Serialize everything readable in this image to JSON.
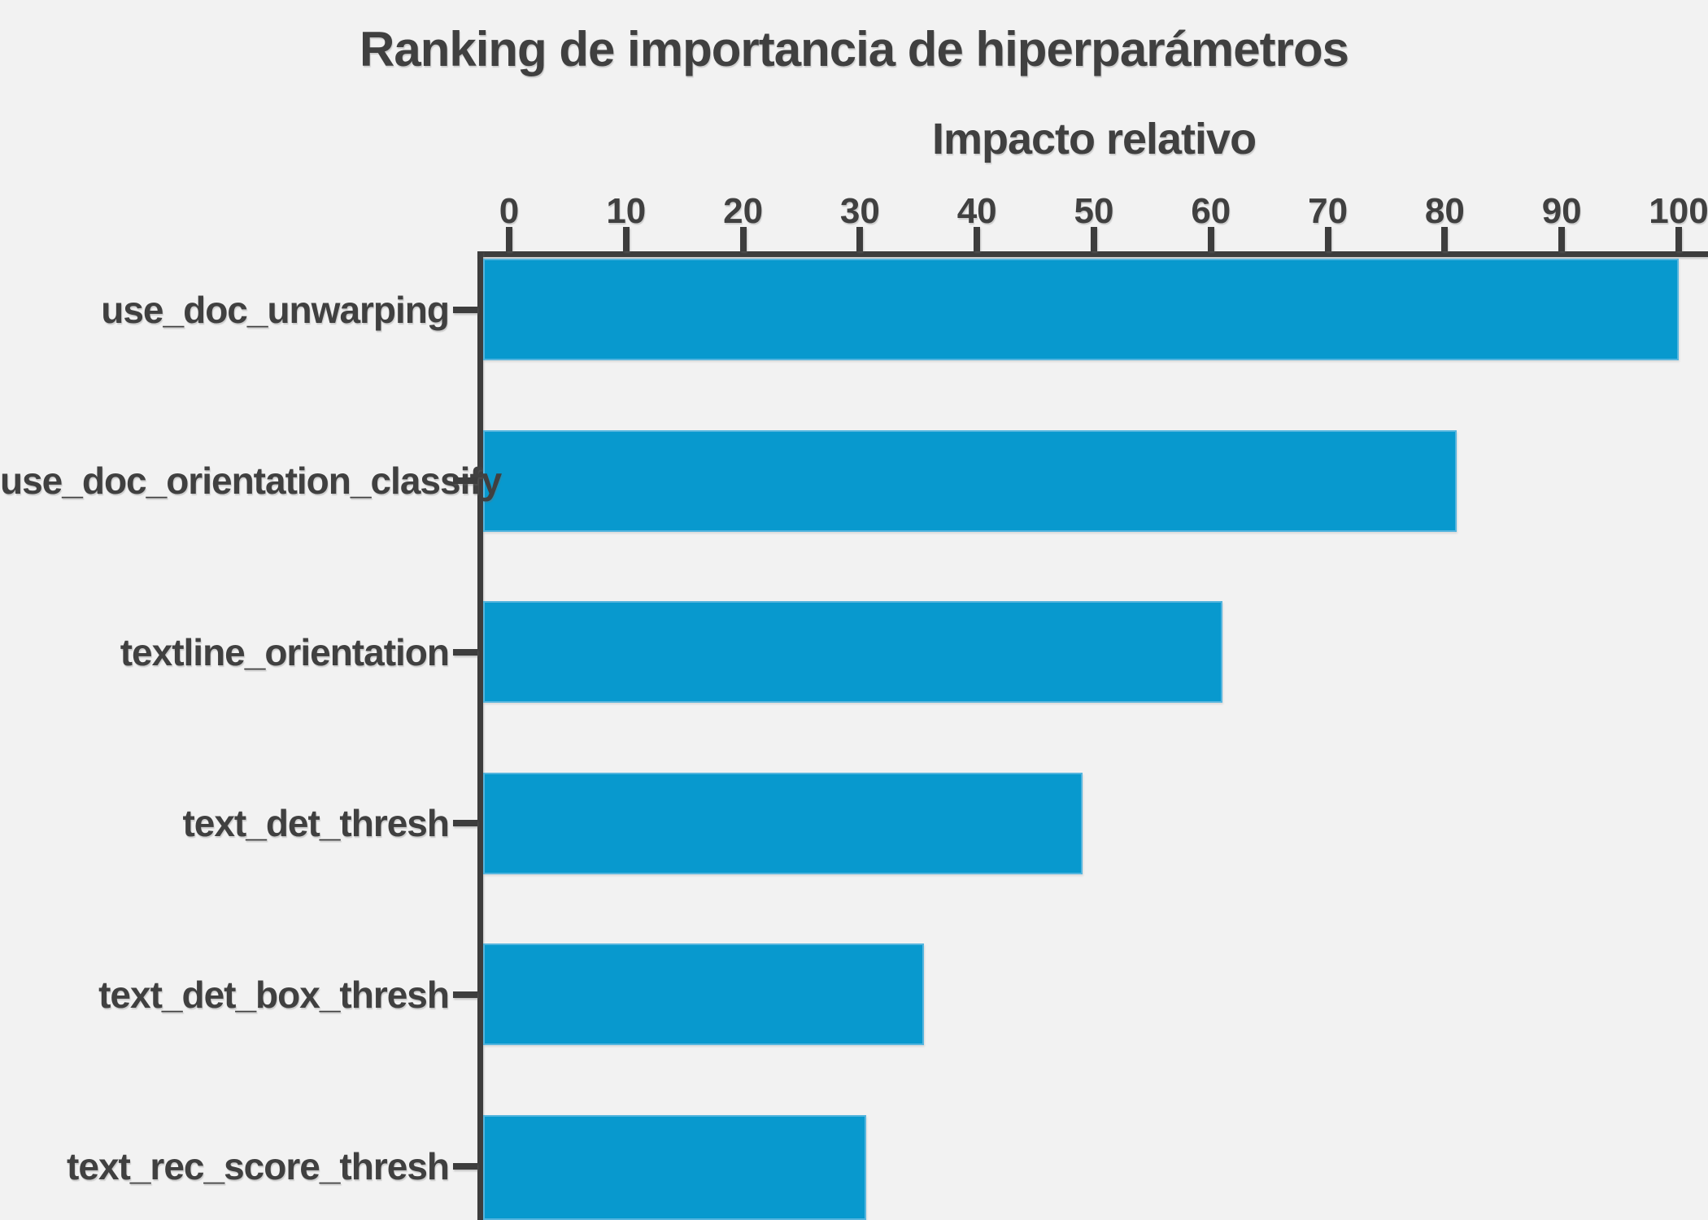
{
  "figure": {
    "background_color": "#f2f2f2",
    "text_color": "#404040",
    "spine_color": "#3d3d3d",
    "bar_color": "#0899ce",
    "bar_edge_color": "#55b5de"
  },
  "chart_data": {
    "type": "bar",
    "orientation": "horizontal",
    "title": "Ranking de importancia de hiperparámetros",
    "xlabel": "Impacto relativo",
    "xlabel_position": "top",
    "categories": [
      "use_doc_unwarping",
      "use_doc_orientation_classify",
      "textline_orientation",
      "text_det_thresh",
      "text_det_box_thresh",
      "text_rec_score_thresh"
    ],
    "values": [
      100,
      81,
      61,
      49,
      35.5,
      30.5
    ],
    "x_ticks": [
      0,
      10,
      20,
      30,
      40,
      50,
      60,
      70,
      80,
      90,
      100
    ],
    "xlim": [
      0,
      100
    ],
    "grid": false,
    "legend": false
  }
}
